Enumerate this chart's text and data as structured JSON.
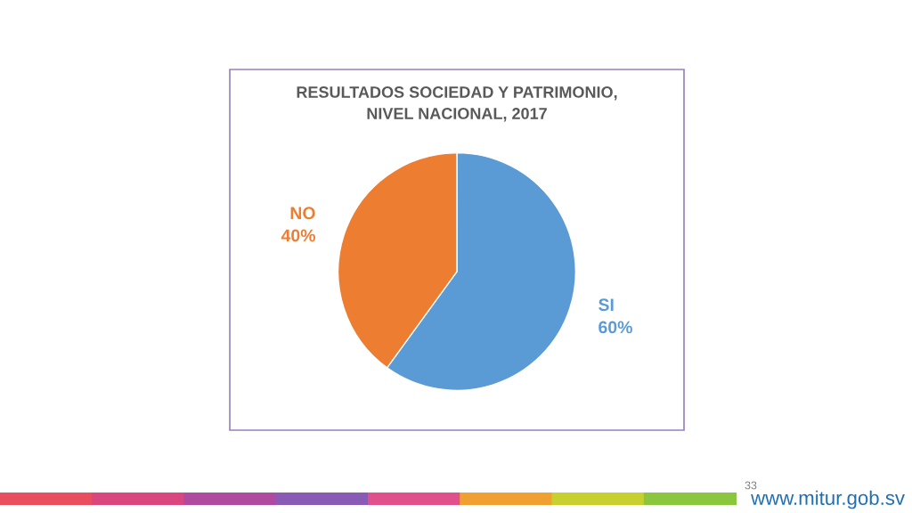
{
  "chart_data": {
    "type": "pie",
    "title": "RESULTADOS SOCIEDAD Y PATRIMONIO,\nNIVEL NACIONAL, 2017",
    "categories": [
      "SI",
      "NO"
    ],
    "values": [
      60,
      40
    ],
    "colors": [
      "#5b9bd5",
      "#ed7d31"
    ],
    "value_labels": [
      "60%",
      "40%"
    ],
    "legend": false,
    "annotations": [
      "33",
      "www.mitur.gob.sv"
    ]
  }
}
